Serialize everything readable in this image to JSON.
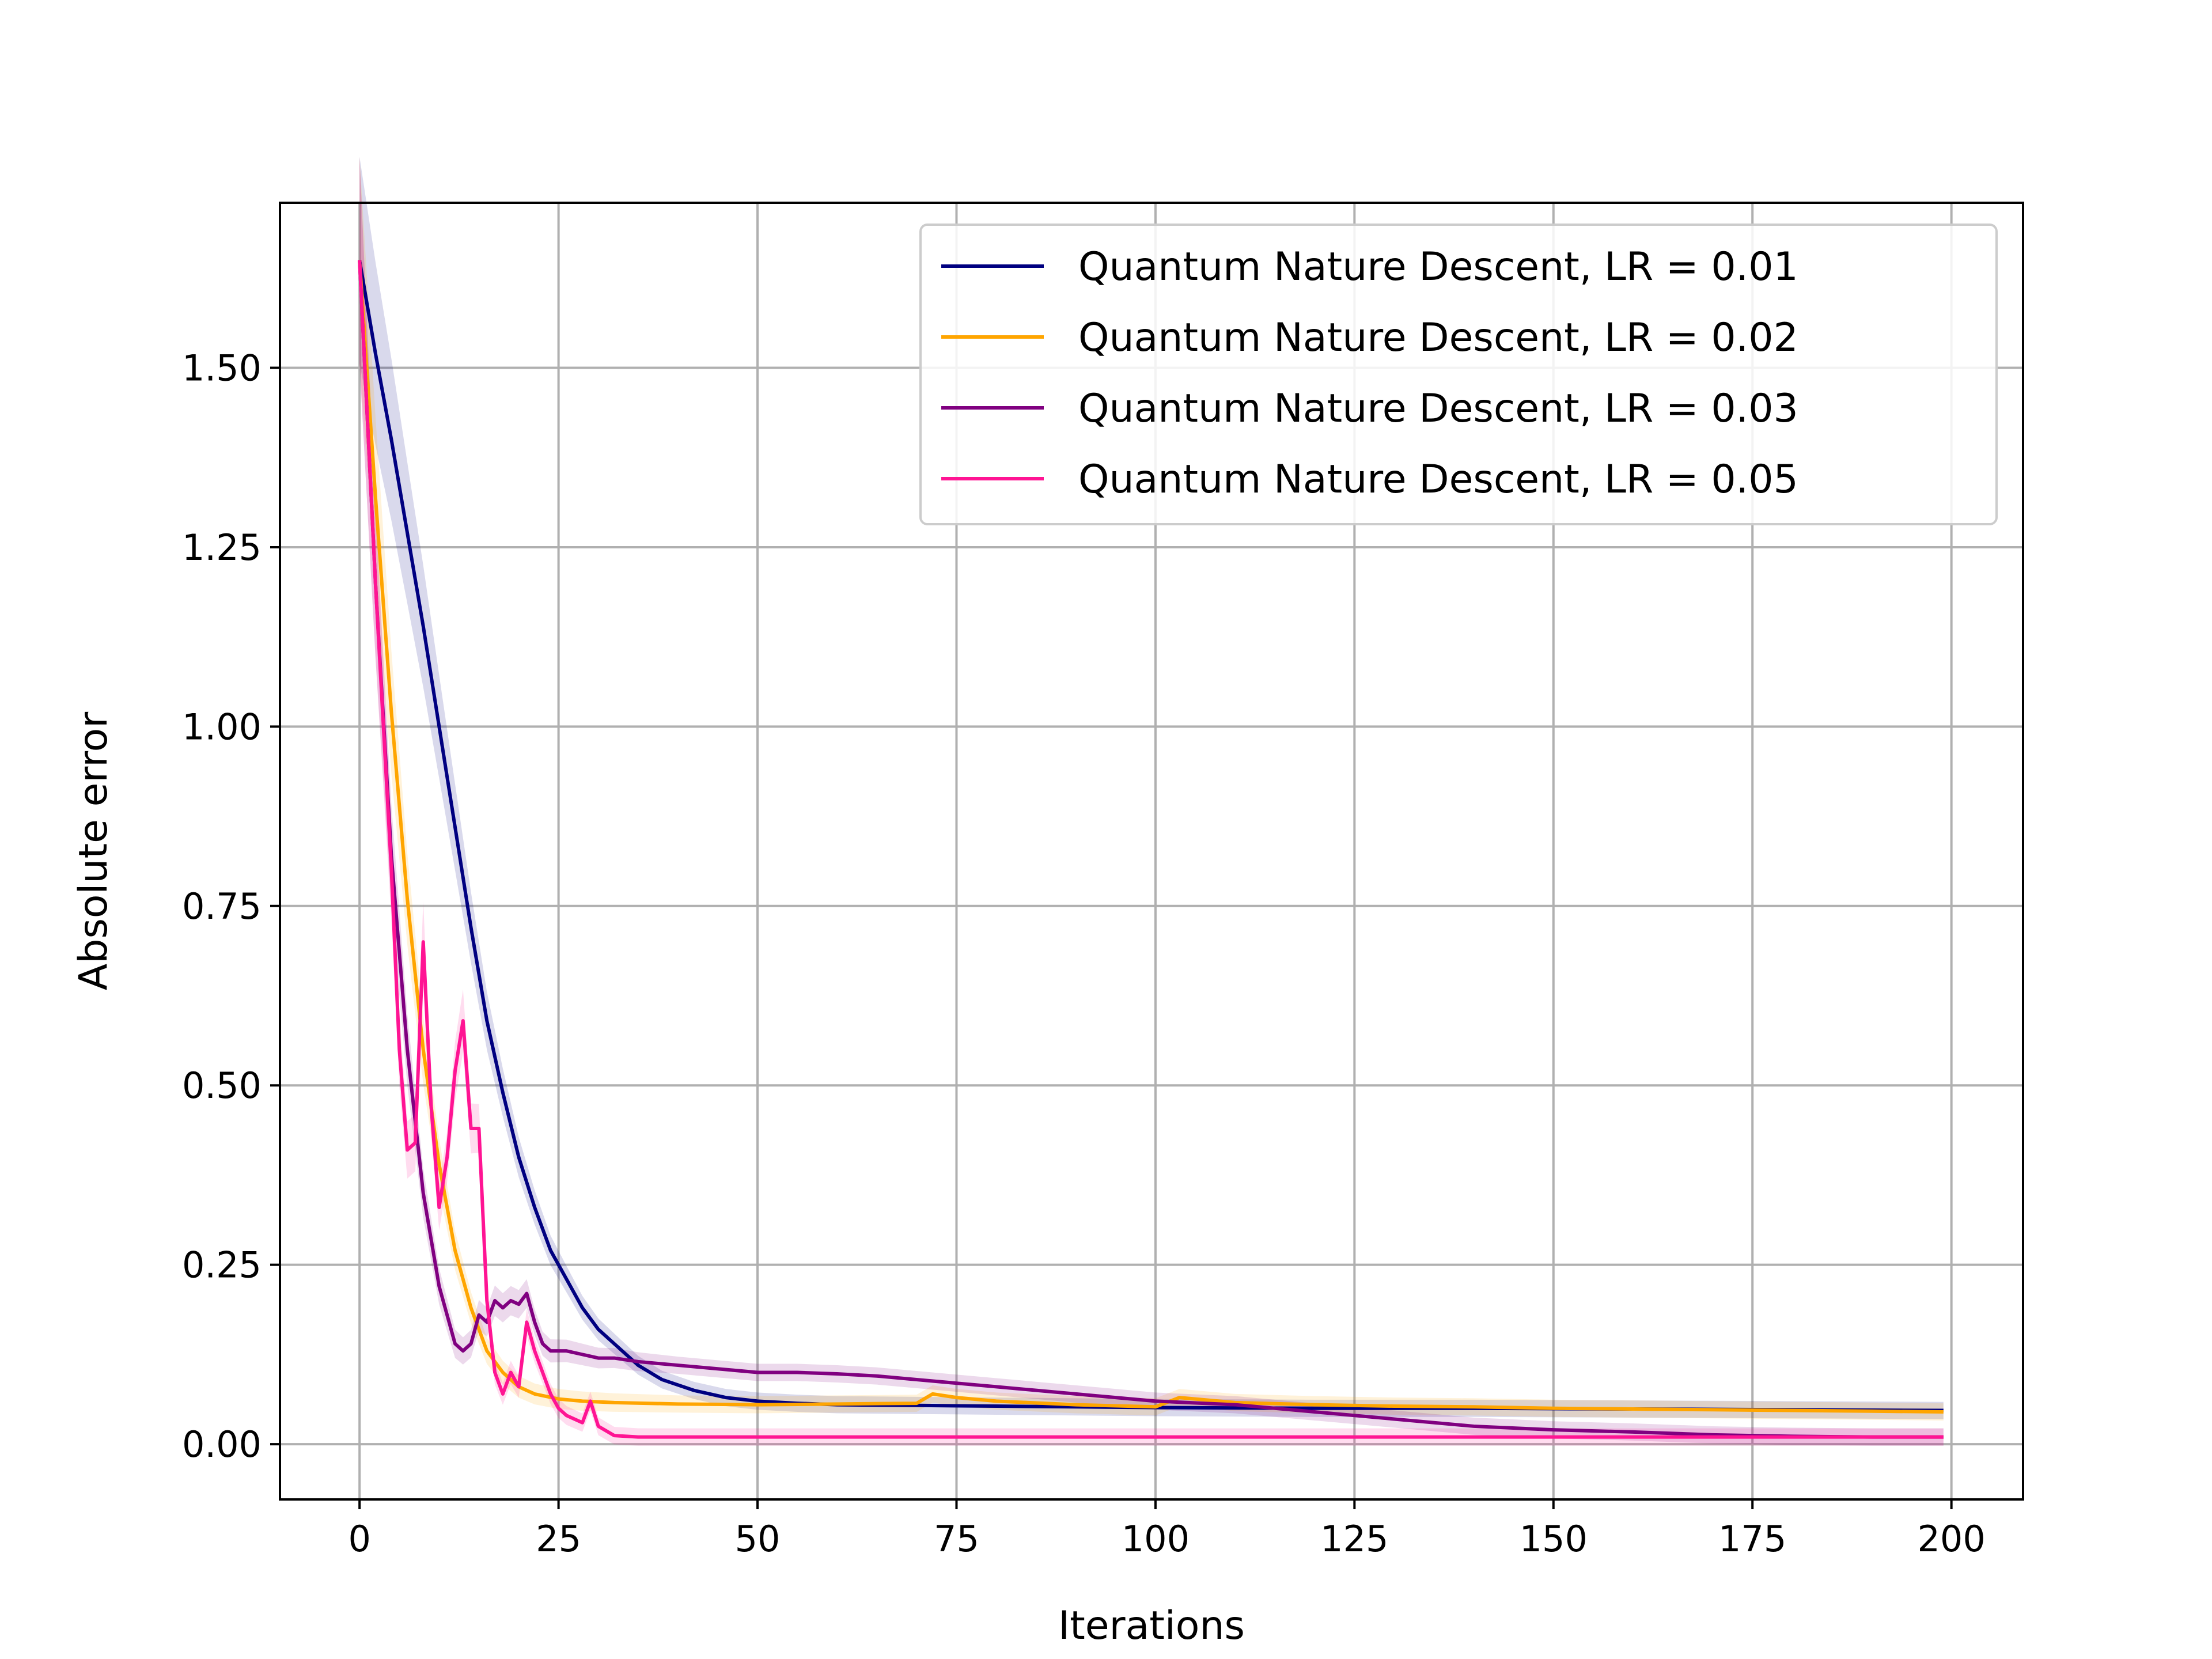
{
  "chart_data": {
    "type": "line",
    "title": "",
    "xlabel": "Iterations",
    "ylabel": "Absolute error",
    "xlim": [
      -10,
      209
    ],
    "ylim": [
      -0.077,
      1.73
    ],
    "xticks": [
      0,
      25,
      50,
      75,
      100,
      125,
      150,
      175,
      200
    ],
    "xtick_labels": [
      "0",
      "25",
      "50",
      "75",
      "100",
      "125",
      "150",
      "175",
      "200"
    ],
    "yticks": [
      0.0,
      0.25,
      0.5,
      0.75,
      1.0,
      1.25,
      1.5
    ],
    "ytick_labels": [
      "0.00",
      "0.25",
      "0.50",
      "0.75",
      "1.00",
      "1.25",
      "1.50"
    ],
    "grid": true,
    "legend_position": "top-right",
    "series": [
      {
        "name": "Quantum Nature Descent, LR = 0.01",
        "color": "#000080",
        "x": [
          0,
          2,
          4,
          6,
          8,
          10,
          12,
          14,
          16,
          18,
          20,
          22,
          24,
          26,
          28,
          30,
          32,
          35,
          38,
          42,
          46,
          50,
          55,
          60,
          70,
          80,
          90,
          100,
          120,
          140,
          160,
          180,
          199
        ],
        "y": [
          1.65,
          1.52,
          1.4,
          1.27,
          1.14,
          1.0,
          0.86,
          0.72,
          0.59,
          0.49,
          0.4,
          0.33,
          0.27,
          0.23,
          0.19,
          0.16,
          0.14,
          0.11,
          0.09,
          0.075,
          0.065,
          0.06,
          0.057,
          0.055,
          0.054,
          0.053,
          0.052,
          0.051,
          0.05,
          0.05,
          0.049,
          0.048,
          0.047
        ]
      },
      {
        "name": "Quantum Nature Descent, LR = 0.02",
        "color": "#FFA500",
        "x": [
          0,
          2,
          4,
          6,
          8,
          10,
          12,
          14,
          16,
          18,
          20,
          22,
          25,
          28,
          32,
          40,
          50,
          60,
          70,
          72,
          75,
          80,
          90,
          100,
          103,
          110,
          120,
          130,
          140,
          150,
          160,
          170,
          180,
          190,
          199
        ],
        "y": [
          1.65,
          1.32,
          1.02,
          0.76,
          0.55,
          0.39,
          0.27,
          0.19,
          0.13,
          0.1,
          0.08,
          0.07,
          0.063,
          0.06,
          0.058,
          0.056,
          0.055,
          0.056,
          0.057,
          0.07,
          0.065,
          0.06,
          0.055,
          0.052,
          0.065,
          0.058,
          0.055,
          0.053,
          0.052,
          0.05,
          0.049,
          0.048,
          0.047,
          0.046,
          0.045
        ]
      },
      {
        "name": "Quantum Nature Descent, LR = 0.03",
        "color": "#800080",
        "x": [
          0,
          2,
          4,
          6,
          8,
          10,
          12,
          13,
          14,
          15,
          16,
          17,
          18,
          19,
          20,
          21,
          22,
          23,
          24,
          26,
          28,
          30,
          32,
          35,
          40,
          45,
          50,
          55,
          60,
          65,
          70,
          75,
          80,
          85,
          90,
          95,
          100,
          110,
          120,
          130,
          140,
          150,
          160,
          170,
          180,
          190,
          199
        ],
        "y": [
          1.65,
          1.2,
          0.82,
          0.55,
          0.35,
          0.22,
          0.14,
          0.13,
          0.14,
          0.18,
          0.17,
          0.2,
          0.19,
          0.2,
          0.195,
          0.21,
          0.17,
          0.14,
          0.13,
          0.13,
          0.125,
          0.12,
          0.12,
          0.115,
          0.11,
          0.105,
          0.1,
          0.1,
          0.098,
          0.095,
          0.09,
          0.085,
          0.08,
          0.075,
          0.07,
          0.065,
          0.06,
          0.055,
          0.045,
          0.035,
          0.025,
          0.02,
          0.017,
          0.013,
          0.011,
          0.01,
          0.01
        ]
      },
      {
        "name": "Quantum Nature Descent, LR = 0.05",
        "color": "#FF1493",
        "x": [
          0,
          2,
          4,
          5,
          6,
          7,
          8,
          9,
          10,
          11,
          12,
          13,
          14,
          15,
          16,
          17,
          18,
          19,
          20,
          21,
          22,
          23,
          24,
          25,
          26,
          27,
          28,
          29,
          30,
          32,
          35,
          40,
          50,
          60,
          80,
          100,
          120,
          140,
          160,
          180,
          199
        ],
        "y": [
          1.65,
          1.2,
          0.8,
          0.55,
          0.41,
          0.42,
          0.7,
          0.47,
          0.33,
          0.4,
          0.52,
          0.59,
          0.44,
          0.44,
          0.2,
          0.1,
          0.07,
          0.1,
          0.08,
          0.17,
          0.13,
          0.1,
          0.07,
          0.05,
          0.04,
          0.035,
          0.03,
          0.06,
          0.025,
          0.012,
          0.01,
          0.01,
          0.01,
          0.01,
          0.01,
          0.01,
          0.01,
          0.01,
          0.01,
          0.01,
          0.01
        ]
      }
    ]
  }
}
